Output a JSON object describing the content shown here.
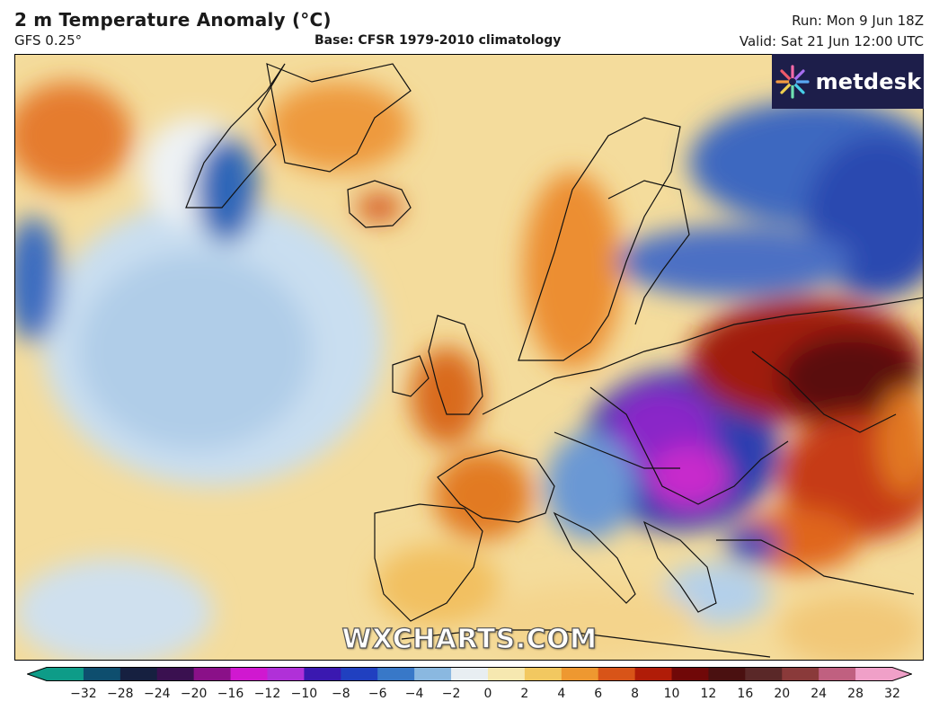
{
  "header": {
    "title": "2 m Temperature Anomaly (°C)",
    "model": "GFS 0.25°",
    "base": "Base: CFSR 1979-2010 climatology",
    "run": "Run: Mon 9 Jun 18Z",
    "valid": "Valid: Sat 21 Jun 12:00 UTC"
  },
  "logo": {
    "text": "metdesk",
    "icon": "metdesk-starburst-icon"
  },
  "watermark": "WXCHARTS.COM",
  "colorbar": {
    "ticks": [
      "−32",
      "−28",
      "−24",
      "−20",
      "−16",
      "−12",
      "−10",
      "−8",
      "−6",
      "−4",
      "−2",
      "0",
      "2",
      "4",
      "6",
      "8",
      "10",
      "12",
      "16",
      "20",
      "24",
      "28",
      "32"
    ],
    "colors": [
      "#0e9c88",
      "#0e4e6e",
      "#162040",
      "#3a1050",
      "#8a1088",
      "#d018d0",
      "#b030d8",
      "#3a18b0",
      "#2040c0",
      "#3878c8",
      "#8ab8e0",
      "#e8eef2",
      "#f6e8b0",
      "#f2c860",
      "#ee9830",
      "#d85418",
      "#b01c08",
      "#700808",
      "#4a1010",
      "#5a2828",
      "#8a3a3a",
      "#c06080",
      "#f0a0c8"
    ]
  },
  "chart_data": {
    "type": "heatmap",
    "title": "2 m Temperature Anomaly (°C)",
    "units": "°C",
    "range": [
      -32,
      32
    ],
    "legend_placement": "bottom"
  }
}
